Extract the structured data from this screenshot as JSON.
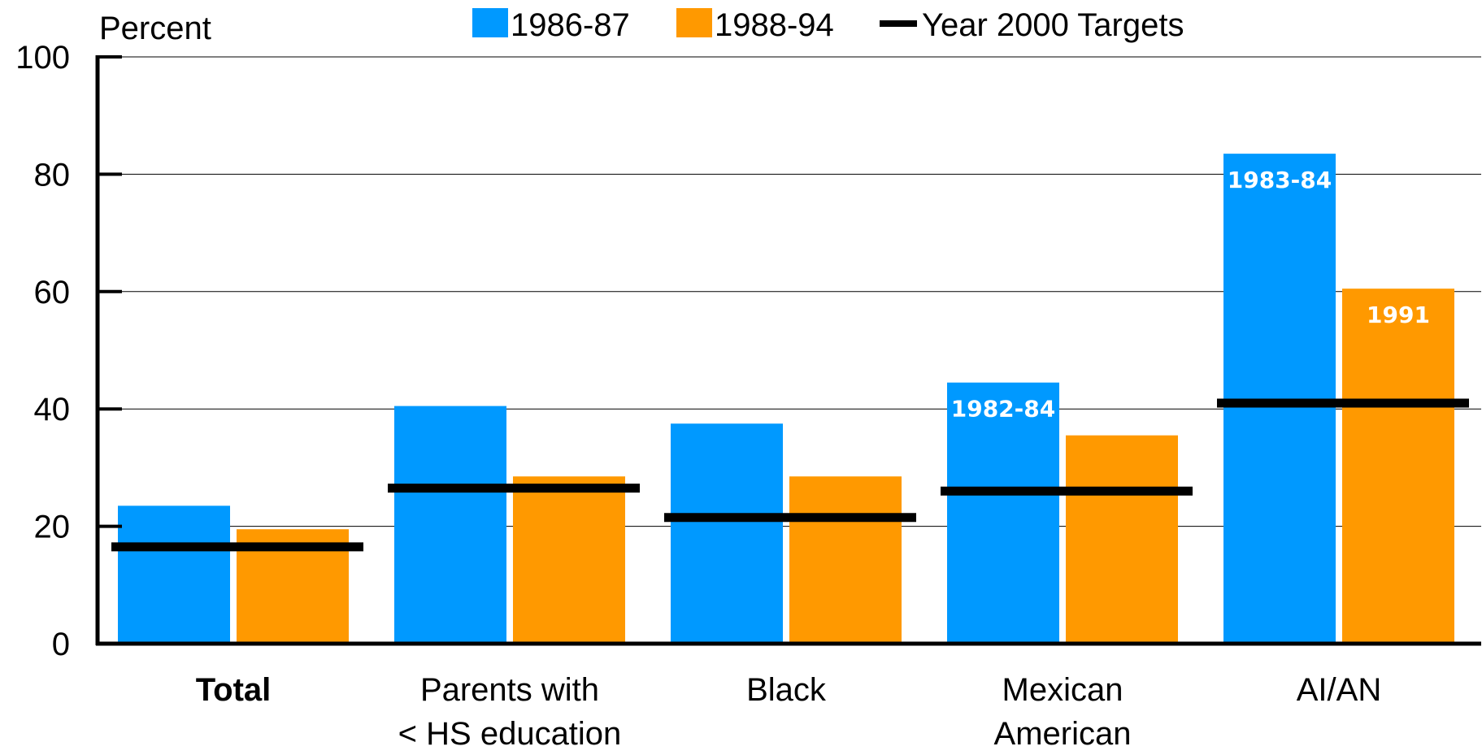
{
  "chart_data": {
    "type": "bar",
    "ylabel": "Percent",
    "ylim": [
      0,
      100
    ],
    "yticks": [
      "0",
      "20",
      "40",
      "60",
      "80",
      "100"
    ],
    "grid": true,
    "legend_position": "top",
    "categories": [
      {
        "lines": [
          "Total"
        ],
        "bold": true
      },
      {
        "lines": [
          "Parents with",
          "< HS education"
        ],
        "bold": false
      },
      {
        "lines": [
          "Black"
        ],
        "bold": false
      },
      {
        "lines": [
          "Mexican",
          "American"
        ],
        "bold": false
      },
      {
        "lines": [
          "AI/AN"
        ],
        "bold": false
      }
    ],
    "series": [
      {
        "name": "1986-87",
        "color": "#0099ff",
        "values": [
          23.5,
          40.5,
          37.5,
          44.5,
          83.5
        ],
        "labels": [
          "",
          "",
          "",
          "1982-84",
          "1983-84"
        ]
      },
      {
        "name": "1988-94",
        "color": "#ff9900",
        "values": [
          19.5,
          28.5,
          28.5,
          35.5,
          60.5
        ],
        "labels": [
          "",
          "",
          "",
          "",
          "1991"
        ]
      }
    ],
    "targets": {
      "name": "Year 2000 Targets",
      "color": "#000000",
      "values": [
        16.5,
        26.5,
        21.5,
        26,
        41
      ]
    }
  }
}
